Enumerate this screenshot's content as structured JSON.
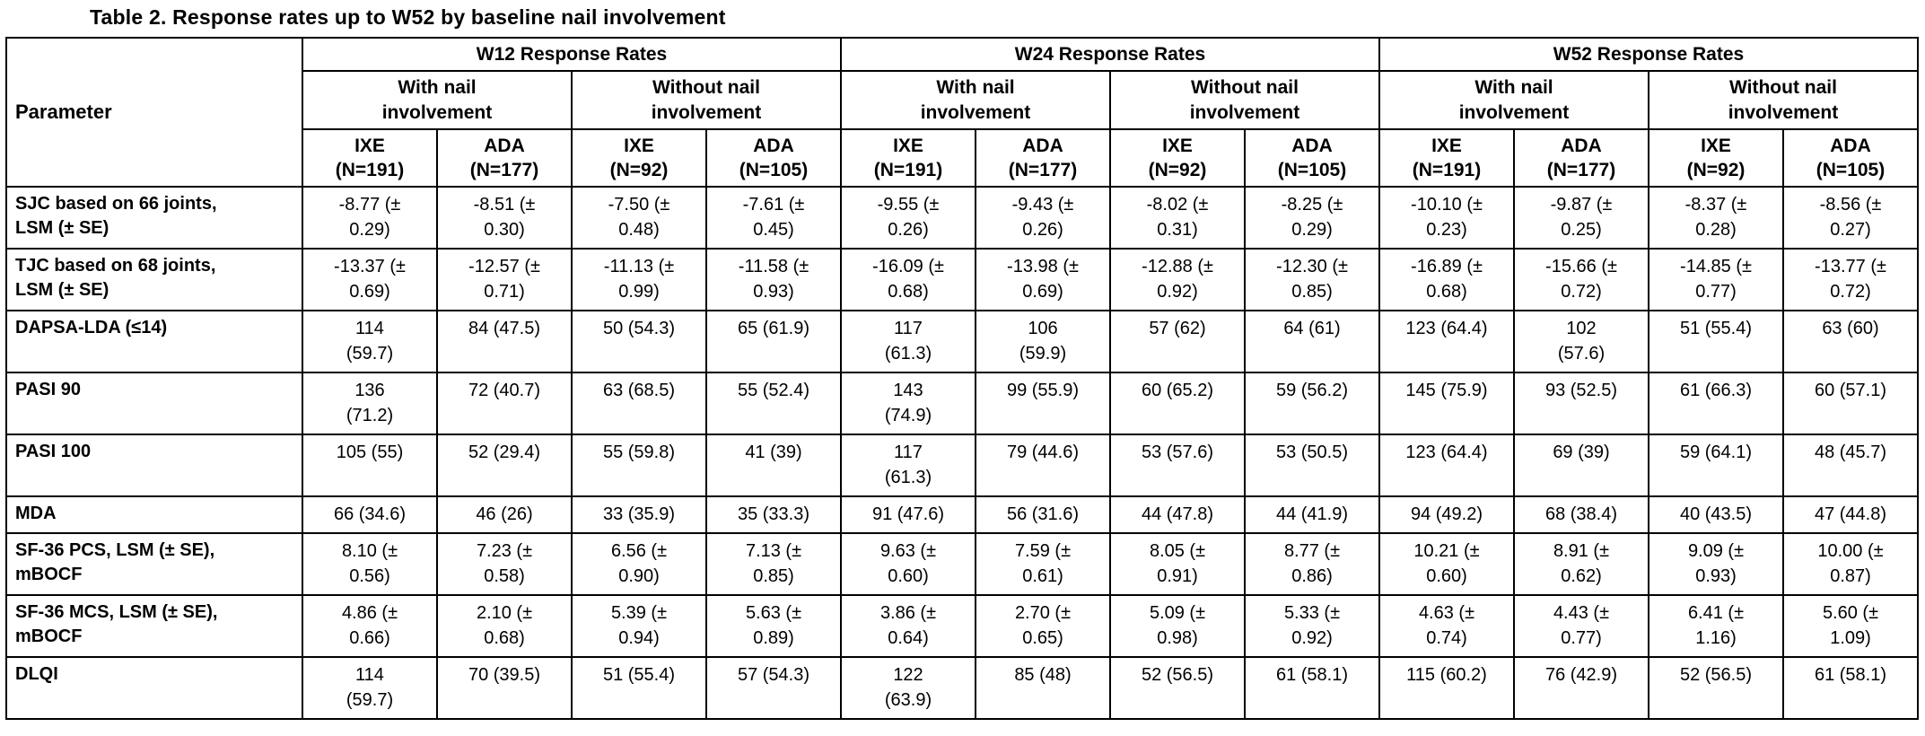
{
  "title": "Table 2. Response rates up to W52 by baseline nail involvement",
  "table": {
    "parameter_header": "Parameter",
    "timepoint_headers": [
      "W12 Response Rates",
      "W24 Response Rates",
      "W52 Response Rates"
    ],
    "nail_headers": [
      "With nail\ninvolvement",
      "Without nail\ninvolvement",
      "With nail\ninvolvement",
      "Without nail\ninvolvement",
      "With nail\ninvolvement",
      "Without nail\ninvolvement"
    ],
    "arm_headers": [
      "IXE\n(N=191)",
      "ADA\n(N=177)",
      "IXE\n(N=92)",
      "ADA\n(N=105)",
      "IXE\n(N=191)",
      "ADA\n(N=177)",
      "IXE\n(N=92)",
      "ADA\n(N=105)",
      "IXE\n(N=191)",
      "ADA\n(N=177)",
      "IXE\n(N=92)",
      "ADA\n(N=105)"
    ],
    "rows": [
      {
        "parameter": "SJC based on 66 joints,\nLSM (± SE)",
        "values": [
          "-8.77 (±\n0.29)",
          "-8.51 (±\n0.30)",
          "-7.50 (±\n0.48)",
          "-7.61 (±\n0.45)",
          "-9.55 (±\n0.26)",
          "-9.43 (±\n0.26)",
          "-8.02 (±\n0.31)",
          "-8.25 (±\n0.29)",
          "-10.10 (±\n0.23)",
          "-9.87 (±\n0.25)",
          "-8.37 (±\n0.28)",
          "-8.56 (±\n0.27)"
        ]
      },
      {
        "parameter": "TJC based on 68 joints,\nLSM (± SE)",
        "values": [
          "-13.37 (±\n0.69)",
          "-12.57 (±\n0.71)",
          "-11.13 (±\n0.99)",
          "-11.58 (±\n0.93)",
          "-16.09 (±\n0.68)",
          "-13.98 (±\n0.69)",
          "-12.88 (±\n0.92)",
          "-12.30 (±\n0.85)",
          "-16.89 (±\n0.68)",
          "-15.66 (±\n0.72)",
          "-14.85 (±\n0.77)",
          "-13.77 (±\n0.72)"
        ]
      },
      {
        "parameter": "DAPSA-LDA (≤14)",
        "values": [
          "114\n(59.7)",
          "84 (47.5)",
          "50 (54.3)",
          "65 (61.9)",
          "117\n(61.3)",
          "106\n(59.9)",
          "57 (62)",
          "64 (61)",
          "123 (64.4)",
          "102\n(57.6)",
          "51 (55.4)",
          "63 (60)"
        ]
      },
      {
        "parameter": "PASI 90",
        "values": [
          "136\n(71.2)",
          "72 (40.7)",
          "63 (68.5)",
          "55 (52.4)",
          "143\n(74.9)",
          "99 (55.9)",
          "60 (65.2)",
          "59 (56.2)",
          "145 (75.9)",
          "93 (52.5)",
          "61 (66.3)",
          "60 (57.1)"
        ]
      },
      {
        "parameter": "PASI 100",
        "values": [
          "105 (55)",
          "52 (29.4)",
          "55 (59.8)",
          "41 (39)",
          "117\n(61.3)",
          "79 (44.6)",
          "53 (57.6)",
          "53 (50.5)",
          "123 (64.4)",
          "69 (39)",
          "59 (64.1)",
          "48 (45.7)"
        ]
      },
      {
        "parameter": "MDA",
        "values": [
          "66 (34.6)",
          "46 (26)",
          "33 (35.9)",
          "35 (33.3)",
          "91 (47.6)",
          "56 (31.6)",
          "44 (47.8)",
          "44 (41.9)",
          "94 (49.2)",
          "68 (38.4)",
          "40 (43.5)",
          "47 (44.8)"
        ]
      },
      {
        "parameter": "SF-36 PCS, LSM (± SE),\nmBOCF",
        "values": [
          "8.10 (±\n0.56)",
          "7.23 (±\n0.58)",
          "6.56 (±\n0.90)",
          "7.13 (±\n0.85)",
          "9.63 (±\n0.60)",
          "7.59 (±\n0.61)",
          "8.05 (±\n0.91)",
          "8.77 (±\n0.86)",
          "10.21 (±\n0.60)",
          "8.91 (±\n0.62)",
          "9.09 (±\n0.93)",
          "10.00 (±\n0.87)"
        ]
      },
      {
        "parameter": "SF-36 MCS, LSM (± SE),\nmBOCF",
        "values": [
          "4.86 (±\n0.66)",
          "2.10 (±\n0.68)",
          "5.39 (±\n0.94)",
          "5.63 (±\n0.89)",
          "3.86 (±\n0.64)",
          "2.70 (±\n0.65)",
          "5.09 (±\n0.98)",
          "5.33 (±\n0.92)",
          "4.63 (±\n0.74)",
          "4.43 (±\n0.77)",
          "6.41 (±\n1.16)",
          "5.60 (±\n1.09)"
        ]
      },
      {
        "parameter": "DLQI",
        "values": [
          "114\n(59.7)",
          "70 (39.5)",
          "51 (55.4)",
          "57 (54.3)",
          "122\n(63.9)",
          "85 (48)",
          "52 (56.5)",
          "61 (58.1)",
          "115 (60.2)",
          "76 (42.9)",
          "52 (56.5)",
          "61 (58.1)"
        ]
      }
    ]
  }
}
